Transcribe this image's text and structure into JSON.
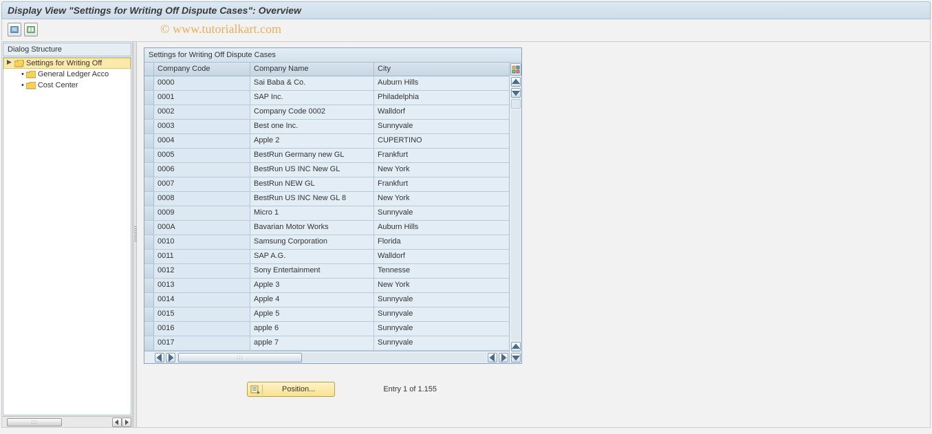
{
  "header": {
    "title": "Display View \"Settings for Writing Off Dispute Cases\": Overview"
  },
  "watermark": "© www.tutorialkart.com",
  "sidebar": {
    "header": "Dialog Structure",
    "items": [
      {
        "label": "Settings for Writing Off",
        "selected": true,
        "indent": 0,
        "open": true
      },
      {
        "label": "General Ledger Acco",
        "selected": false,
        "indent": 1,
        "open": false
      },
      {
        "label": "Cost Center",
        "selected": false,
        "indent": 1,
        "open": false
      }
    ]
  },
  "table": {
    "title": "Settings for Writing Off Dispute Cases",
    "columns": [
      "Company Code",
      "Company Name",
      "City"
    ],
    "rows": [
      [
        "0000",
        "Sai Baba & Co.",
        "Auburn Hills"
      ],
      [
        "0001",
        "SAP Inc.",
        "Philadelphia"
      ],
      [
        "0002",
        "Company Code 0002",
        "Walldorf"
      ],
      [
        "0003",
        "Best one Inc.",
        "Sunnyvale"
      ],
      [
        "0004",
        "Apple 2",
        "CUPERTINO"
      ],
      [
        "0005",
        "BestRun Germany new GL",
        "Frankfurt"
      ],
      [
        "0006",
        "BestRun US INC New GL",
        "New York"
      ],
      [
        "0007",
        "BestRun NEW GL",
        "Frankfurt"
      ],
      [
        "0008",
        "BestRun US INC New GL 8",
        "New York"
      ],
      [
        "0009",
        "Micro 1",
        "Sunnyvale"
      ],
      [
        "000A",
        "Bavarian Motor Works",
        "Auburn Hills"
      ],
      [
        "0010",
        "Samsung Corporation",
        "Florida"
      ],
      [
        "0011",
        "SAP A.G.",
        "Walldorf"
      ],
      [
        "0012",
        "Sony Entertainment",
        "Tennesse"
      ],
      [
        "0013",
        "Apple 3",
        "New York"
      ],
      [
        "0014",
        "Apple 4",
        "Sunnyvale"
      ],
      [
        "0015",
        "Apple 5",
        "Sunnyvale"
      ],
      [
        "0016",
        "apple 6",
        "Sunnyvale"
      ],
      [
        "0017",
        "apple 7",
        "Sunnyvale"
      ]
    ]
  },
  "footer": {
    "position_label": "Position...",
    "entry_text": "Entry 1 of 1.155"
  },
  "colors": {
    "title_bg_top": "#dce8f2",
    "title_bg_bottom": "#cddde9",
    "border": "#a9bfd0",
    "row_bg": "#e3edf5",
    "row_alt_bg": "#dce8f2",
    "selected_tree_bg": "#fde9a9",
    "position_bg_top": "#fff3c6",
    "position_bg_bottom": "#f8e28f"
  }
}
